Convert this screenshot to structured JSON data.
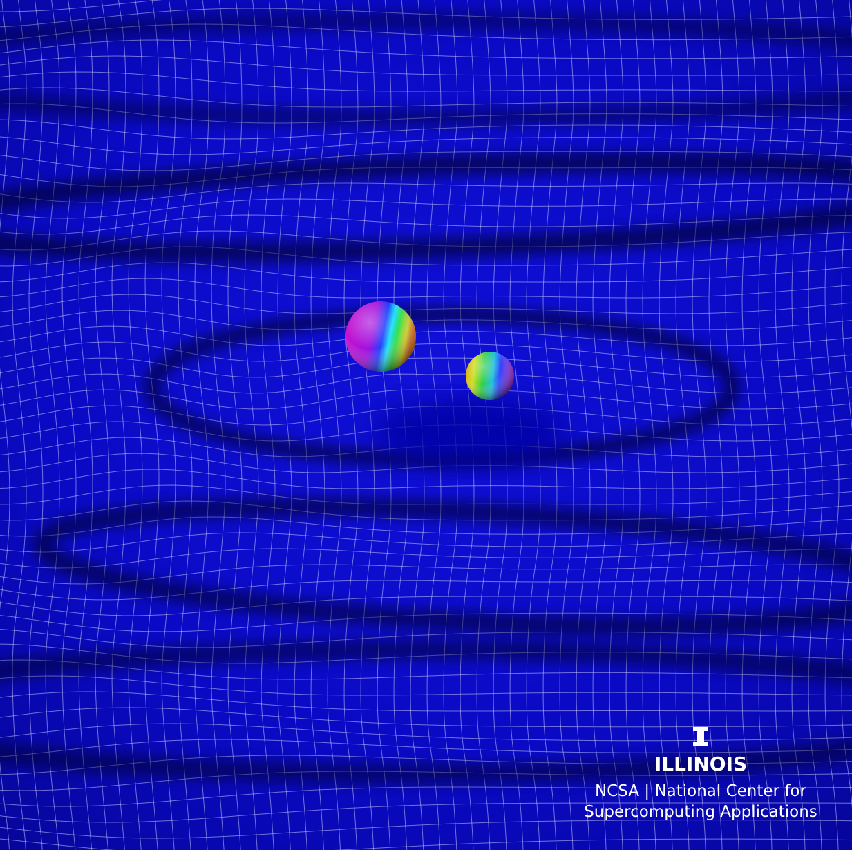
{
  "logo": {
    "wordmark": "ILLINOIS",
    "lines": [
      "NCSA | National Center for",
      "Supercomputing Applications"
    ]
  }
}
